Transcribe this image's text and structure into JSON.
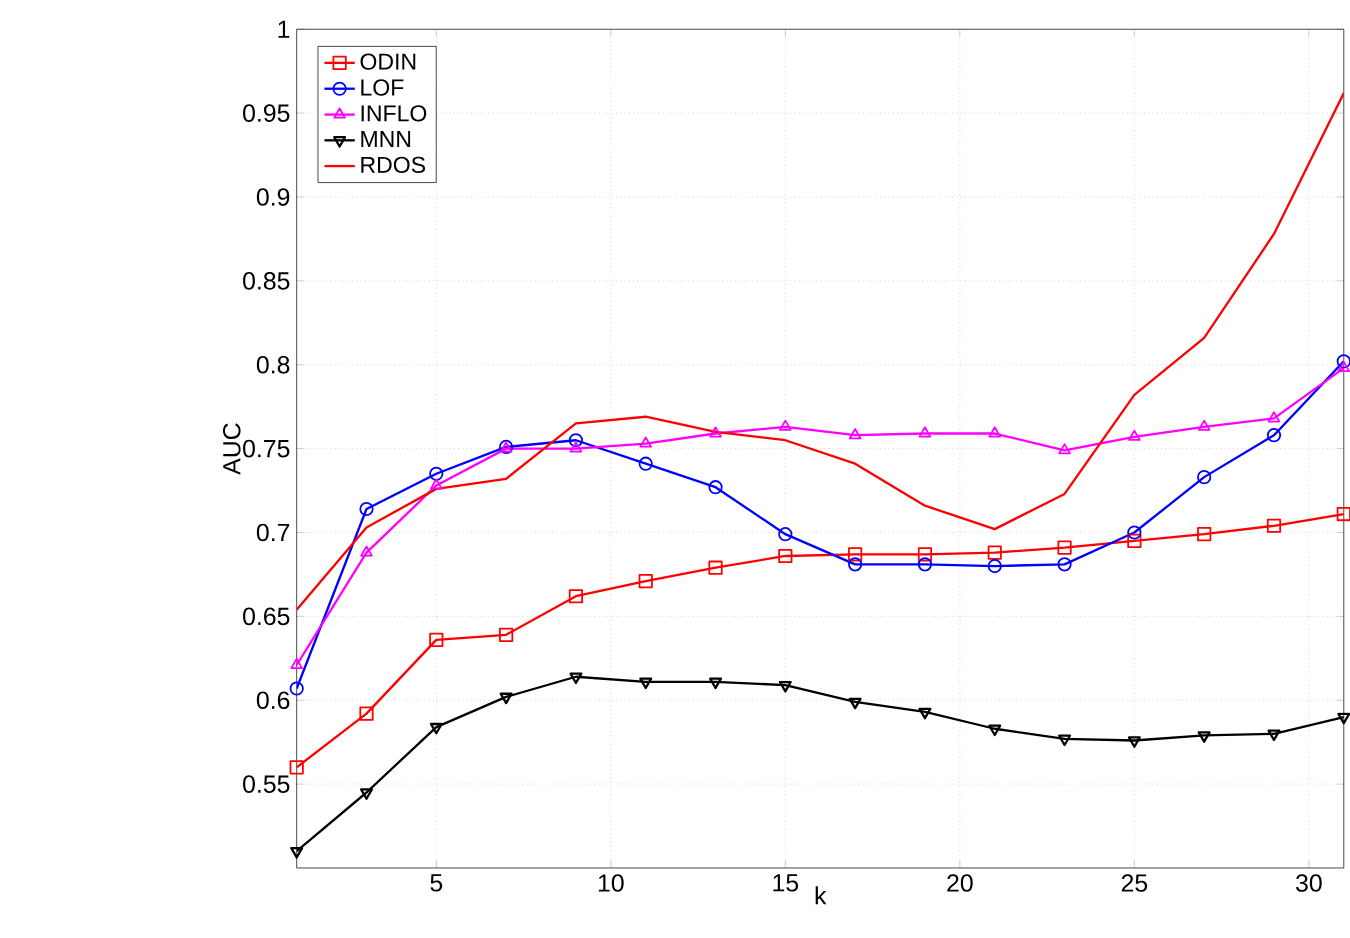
{
  "chart_data": {
    "type": "line",
    "xlabel": "k",
    "ylabel": "AUC",
    "x": [
      1,
      3,
      5,
      7,
      9,
      11,
      13,
      15,
      17,
      19,
      21,
      23,
      25,
      27,
      29,
      31
    ],
    "xlim": [
      1,
      31
    ],
    "ylim": [
      0.5,
      1
    ],
    "xticks": [
      5,
      10,
      15,
      20,
      25,
      30
    ],
    "yticks": [
      0.55,
      0.6,
      0.65,
      0.7,
      0.75,
      0.8,
      0.85,
      0.9,
      0.95,
      1
    ],
    "grid": true,
    "legend": "top left",
    "line_style": "solid",
    "series": [
      {
        "name": "ODIN",
        "color": "#ff0000",
        "marker": "square",
        "values": [
          0.56,
          0.592,
          0.636,
          0.639,
          0.662,
          0.671,
          0.679,
          0.686,
          0.687,
          0.687,
          0.688,
          0.691,
          0.695,
          0.699,
          0.704,
          0.711
        ]
      },
      {
        "name": "LOF",
        "color": "#0000ff",
        "marker": "circle",
        "values": [
          0.607,
          0.714,
          0.735,
          0.751,
          0.755,
          0.741,
          0.727,
          0.699,
          0.681,
          0.681,
          0.68,
          0.681,
          0.7,
          0.733,
          0.758,
          0.802
        ]
      },
      {
        "name": "INFLO",
        "color": "#ff00ff",
        "marker": "triangle",
        "values": [
          0.621,
          0.688,
          0.728,
          0.75,
          0.75,
          0.753,
          0.759,
          0.763,
          0.758,
          0.759,
          0.759,
          0.749,
          0.757,
          0.763,
          0.768,
          0.798
        ]
      },
      {
        "name": "MNN",
        "color": "#000000",
        "marker": "triangle_down",
        "values": [
          0.51,
          0.545,
          0.584,
          0.602,
          0.614,
          0.611,
          0.611,
          0.609,
          0.599,
          0.593,
          0.583,
          0.577,
          0.576,
          0.579,
          0.58,
          0.59
        ]
      },
      {
        "name": "RDOS",
        "color": "#ff0000",
        "marker": "none",
        "values": [
          0.654,
          0.703,
          0.726,
          0.732,
          0.765,
          0.769,
          0.76,
          0.755,
          0.741,
          0.716,
          0.702,
          0.723,
          0.782,
          0.816,
          0.878,
          0.962
        ]
      }
    ]
  }
}
